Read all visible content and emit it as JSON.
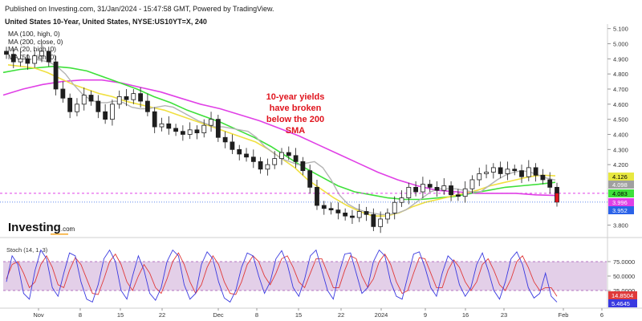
{
  "header": {
    "published": "Published on Investing.com, 31/Jan/2024 - 15:47:58 GMT, Powered by TradingView.",
    "symbol": "United States 10-Year, United States, NYSE:US10YT=X, 240"
  },
  "logo": {
    "text": "Investing",
    "suffix": ".com"
  },
  "colors": {
    "ma100": "#3ee03a",
    "ma200": "#e040e6",
    "ma20": "#b4b4b4",
    "ma50": "#f0e040",
    "candle": "#1e1e1e",
    "stoch_k": "#3a3ae0",
    "stoch_d": "#e03a3a",
    "stoch_band": "#d9bfe0"
  },
  "chart_data": [
    {
      "type": "candlestick",
      "title": "United States 10-Year, United States, NYSE:US10YT=X, 240",
      "annotation": [
        "10-year yields",
        "have broken",
        "below the 200",
        "SMA"
      ],
      "legend": [
        "MA (100, high, 0)",
        "MA (200, close, 0)",
        "MA (20, high, 0)",
        "MA (50, high, 0)"
      ],
      "y_ticks": [
        "5.100",
        "5.000",
        "4.900",
        "4.800",
        "4.700",
        "4.600",
        "4.500",
        "4.400",
        "4.300",
        "4.200",
        "3.800"
      ],
      "ylim": [
        3.76,
        5.13
      ],
      "x_ticks": [
        "Nov",
        "8",
        "15",
        "22",
        "Dec",
        "8",
        "15",
        "22",
        "2024",
        "9",
        "16",
        "23",
        "Feb",
        "6"
      ],
      "price_labels": [
        {
          "value": "4.126",
          "bg": "#e8e840",
          "fg": "#000000"
        },
        {
          "value": "4.098",
          "bg": "#a0a0a0",
          "fg": "#ffffff"
        },
        {
          "value": "4.083",
          "bg": "#3ee03a",
          "fg": "#000000"
        },
        {
          "value": "3.996",
          "bg": "#e040e6",
          "fg": "#ffffff"
        },
        {
          "value": "3.952",
          "bg": "#2a62e8",
          "fg": "#ffffff"
        }
      ],
      "ma200_line_value": 4.01,
      "last_close": 3.952,
      "closes": [
        4.93,
        4.88,
        4.9,
        4.87,
        4.92,
        4.95,
        4.88,
        4.7,
        4.64,
        4.55,
        4.6,
        4.66,
        4.62,
        4.55,
        4.5,
        4.6,
        4.65,
        4.63,
        4.67,
        4.62,
        4.55,
        4.45,
        4.47,
        4.44,
        4.42,
        4.4,
        4.43,
        4.41,
        4.46,
        4.5,
        4.38,
        4.35,
        4.3,
        4.27,
        4.25,
        4.22,
        4.17,
        4.2,
        4.24,
        4.28,
        4.26,
        4.22,
        4.16,
        4.05,
        3.93,
        3.91,
        3.9,
        3.88,
        3.86,
        3.85,
        3.89,
        3.87,
        3.79,
        3.84,
        3.88,
        3.95,
        3.98,
        4.05,
        4.02,
        4.07,
        4.05,
        4.03,
        4.06,
        4.0,
        3.99,
        4.04,
        4.1,
        4.14,
        4.15,
        4.18,
        4.14,
        4.17,
        4.16,
        4.12,
        4.18,
        4.13,
        4.1,
        4.05,
        3.952
      ],
      "ma20": [
        4.9,
        4.89,
        4.88,
        4.85,
        4.8,
        4.73,
        4.67,
        4.63,
        4.61,
        4.61,
        4.62,
        4.61,
        4.58,
        4.57,
        4.57,
        4.58,
        4.59,
        4.58,
        4.55,
        4.52,
        4.49,
        4.47,
        4.45,
        4.45,
        4.44,
        4.43,
        4.42,
        4.38,
        4.32,
        4.28,
        4.24,
        4.22,
        4.2,
        4.21,
        4.22,
        4.18,
        4.1,
        4.0,
        3.94,
        3.91,
        3.89,
        3.88,
        3.87,
        3.87,
        3.88,
        3.9,
        3.94,
        3.98,
        4.02,
        4.04,
        4.04,
        4.04,
        4.03,
        4.02,
        4.02,
        4.06,
        4.1,
        4.13,
        4.15,
        4.16,
        4.15,
        4.13,
        4.11,
        4.098
      ],
      "ma50": [
        4.86,
        4.85,
        4.84,
        4.81,
        4.77,
        4.73,
        4.7,
        4.67,
        4.65,
        4.62,
        4.6,
        4.58,
        4.56,
        4.53,
        4.5,
        4.47,
        4.44,
        4.41,
        4.38,
        4.35,
        4.3,
        4.24,
        4.18,
        4.1,
        4.04,
        3.98,
        3.93,
        3.89,
        3.86,
        3.86,
        3.88,
        3.92,
        3.95,
        3.97,
        3.99,
        4.01,
        4.03,
        4.06,
        4.08,
        4.1,
        4.12,
        4.13,
        4.126
      ],
      "ma100": [
        4.81,
        4.83,
        4.84,
        4.85,
        4.84,
        4.82,
        4.78,
        4.74,
        4.7,
        4.65,
        4.61,
        4.56,
        4.52,
        4.48,
        4.43,
        4.38,
        4.32,
        4.25,
        4.18,
        4.12,
        4.06,
        4.02,
        4.0,
        3.98,
        3.97,
        3.97,
        3.98,
        3.99,
        4.01,
        4.03,
        4.05,
        4.06,
        4.07,
        4.083
      ],
      "ma200": [
        4.66,
        4.7,
        4.73,
        4.75,
        4.76,
        4.76,
        4.74,
        4.71,
        4.68,
        4.64,
        4.6,
        4.57,
        4.53,
        4.49,
        4.44,
        4.39,
        4.33,
        4.27,
        4.21,
        4.15,
        4.1,
        4.06,
        4.03,
        4.02,
        4.01,
        4.01,
        4.01,
        4.0,
        3.996
      ]
    },
    {
      "type": "line",
      "title": "Stoch (14, 1, 3)",
      "y_ticks": [
        "75.0000",
        "50.0000",
        "25.0000"
      ],
      "ylim": [
        0,
        100
      ],
      "band": [
        25,
        75
      ],
      "value_labels": [
        {
          "value": "14.8504",
          "bg": "#e03a3a",
          "fg": "#ffffff"
        },
        {
          "value": "5.4645",
          "bg": "#3a3ae0",
          "fg": "#ffffff"
        }
      ],
      "k": [
        40,
        85,
        70,
        20,
        10,
        60,
        95,
        80,
        30,
        15,
        55,
        90,
        85,
        40,
        10,
        5,
        35,
        80,
        95,
        75,
        25,
        10,
        50,
        85,
        60,
        20,
        8,
        30,
        75,
        95,
        85,
        35,
        10,
        20,
        70,
        92,
        80,
        40,
        12,
        5,
        25,
        65,
        90,
        85,
        50,
        20,
        40,
        80,
        94,
        70,
        30,
        15,
        45,
        85,
        95,
        60,
        25,
        10,
        55,
        88,
        90,
        55,
        20,
        30,
        75,
        95,
        85,
        40,
        15,
        10,
        50,
        88,
        92,
        65,
        30,
        15,
        55,
        85,
        75,
        35,
        15,
        30,
        70,
        90,
        60,
        25,
        10,
        40,
        80,
        92,
        70,
        30,
        12,
        20,
        55,
        15,
        5
      ],
      "d": [
        45,
        70,
        75,
        55,
        30,
        40,
        70,
        85,
        65,
        35,
        30,
        60,
        82,
        70,
        45,
        20,
        18,
        45,
        75,
        88,
        70,
        40,
        25,
        50,
        70,
        55,
        30,
        20,
        45,
        75,
        90,
        70,
        40,
        20,
        35,
        65,
        85,
        70,
        40,
        20,
        18,
        40,
        70,
        85,
        75,
        50,
        35,
        55,
        80,
        85,
        65,
        40,
        30,
        55,
        80,
        80,
        55,
        30,
        30,
        60,
        85,
        80,
        50,
        30,
        45,
        75,
        88,
        70,
        40,
        20,
        25,
        55,
        82,
        80,
        55,
        30,
        30,
        60,
        78,
        65,
        40,
        25,
        40,
        70,
        80,
        60,
        35,
        25,
        45,
        75,
        85,
        65,
        40,
        25,
        30,
        30,
        14.85
      ]
    }
  ]
}
